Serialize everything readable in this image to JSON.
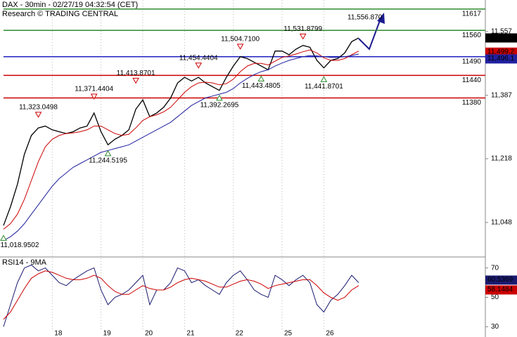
{
  "chart_data": [
    {
      "type": "line",
      "title": "DAX - 30min - 02/27/19 04:32:54 (CET)",
      "subtitle": "Research © TRADING CENTRAL",
      "series": [
        {
          "color": "#000000",
          "values": [
            11040,
            11090,
            11150,
            11230,
            11280,
            11300,
            11305,
            11295,
            11290,
            11285,
            11290,
            11300,
            11305,
            11340,
            11290,
            11255,
            11270,
            11280,
            11295,
            11350,
            11375,
            11330,
            11340,
            11355,
            11380,
            11420,
            11435,
            11425,
            11435,
            11420,
            11410,
            11400,
            11435,
            11465,
            11490,
            11485,
            11475,
            11465,
            11455,
            11505,
            11505,
            11495,
            11510,
            11520,
            11515,
            11480,
            11460,
            11480,
            11485,
            11500,
            11530,
            11540
          ]
        },
        {
          "color": "#cc0000",
          "values": [
            11030,
            11045,
            11070,
            11110,
            11160,
            11210,
            11250,
            11270,
            11280,
            11285,
            11287,
            11290,
            11295,
            11305,
            11305,
            11295,
            11285,
            11280,
            11283,
            11300,
            11320,
            11330,
            11335,
            11343,
            11355,
            11375,
            11395,
            11410,
            11420,
            11422,
            11420,
            11415,
            11418,
            11430,
            11450,
            11465,
            11472,
            11472,
            11468,
            11478,
            11488,
            11492,
            11497,
            11503,
            11508,
            11500,
            11487,
            11480,
            11480,
            11485,
            11495,
            11505
          ]
        },
        {
          "color": "#2020a0",
          "values": [
            11000,
            11010,
            11025,
            11045,
            11070,
            11095,
            11120,
            11145,
            11165,
            11180,
            11195,
            11205,
            11215,
            11225,
            11235,
            11240,
            11245,
            11250,
            11255,
            11265,
            11275,
            11285,
            11295,
            11305,
            11315,
            11330,
            11345,
            11360,
            11370,
            11380,
            11385,
            11390,
            11395,
            11405,
            11420,
            11432,
            11442,
            11450,
            11455,
            11465,
            11473,
            11480,
            11485,
            11490,
            11493,
            11492,
            11490,
            11488,
            11488,
            11490,
            11493,
            11497
          ]
        }
      ],
      "ylim": [
        10958,
        11641
      ],
      "yticks": [
        {
          "value": 11557,
          "label": "11,557"
        },
        {
          "value": 11387,
          "label": "11,387"
        },
        {
          "value": 11218,
          "label": "11,218"
        },
        {
          "value": 11048,
          "label": "11,048"
        }
      ],
      "levels": [
        {
          "value": 11617,
          "color": "#2e8b2e"
        },
        {
          "value": 11560,
          "color": "#2e8b2e"
        },
        {
          "value": 11490,
          "color": "#2020c0"
        },
        {
          "value": 11440,
          "color": "#cc0000"
        },
        {
          "value": 11380,
          "color": "#cc0000"
        }
      ],
      "pivots": [
        {
          "x": 0,
          "kind": "low",
          "value": 11018.9502,
          "label": "11,018.9502"
        },
        {
          "x": 5,
          "kind": "high",
          "value": 11323.0498,
          "label": "11,323.0498"
        },
        {
          "x": 13,
          "kind": "high",
          "value": 11371.4404,
          "label": "11,371.4404"
        },
        {
          "x": 15,
          "kind": "low",
          "value": 11244.5195,
          "label": "11,244.5195"
        },
        {
          "x": 19,
          "kind": "high",
          "value": 11413.8701,
          "label": "11,413.8701"
        },
        {
          "x": 28,
          "kind": "high",
          "value": 11454.4404,
          "label": "11,454.4404"
        },
        {
          "x": 31,
          "kind": "low",
          "value": 11392.2695,
          "label": "11,392.2695"
        },
        {
          "x": 34,
          "kind": "high",
          "value": 11504.71,
          "label": "11,504.7100"
        },
        {
          "x": 37,
          "kind": "low",
          "value": 11443.4805,
          "label": "11,443.4805"
        },
        {
          "x": 43,
          "kind": "high",
          "value": 11531.8799,
          "label": "11,531.8799"
        },
        {
          "x": 46,
          "kind": "low",
          "value": 11441.8701,
          "label": "11,441.8701"
        }
      ],
      "forecast_label": {
        "value": 11556.87,
        "label": "11,556.870"
      },
      "badges": [
        {
          "value": 11540.8,
          "label": "11,540.8",
          "color": "#000000"
        },
        {
          "value": 11499.2,
          "label": "11,499.2",
          "color": "#cc0000"
        },
        {
          "value": 11496.1,
          "label": "11,496.1",
          "color": "#2020a0"
        }
      ]
    },
    {
      "type": "line",
      "title": "RSI14 - 9MA",
      "categories": [
        null,
        null,
        null,
        null,
        null,
        null,
        null,
        "18",
        null,
        null,
        null,
        null,
        null,
        null,
        "19",
        null,
        null,
        null,
        null,
        null,
        "20",
        null,
        null,
        null,
        null,
        null,
        "21",
        null,
        null,
        null,
        null,
        null,
        null,
        "22",
        null,
        null,
        null,
        null,
        null,
        null,
        "25",
        null,
        null,
        null,
        null,
        null,
        "26",
        null,
        null,
        null,
        null,
        null
      ],
      "series": [
        {
          "color": "#1a1a70",
          "values": [
            30,
            45,
            60,
            70,
            72,
            68,
            70,
            65,
            60,
            58,
            62,
            65,
            68,
            70,
            55,
            45,
            50,
            52,
            55,
            60,
            65,
            45,
            55,
            55,
            60,
            70,
            68,
            60,
            62,
            58,
            55,
            52,
            60,
            65,
            68,
            62,
            55,
            52,
            50,
            65,
            62,
            58,
            62,
            65,
            60,
            45,
            40,
            48,
            52,
            58,
            65,
            60
          ]
        },
        {
          "color": "#cc0000",
          "values": [
            35,
            40,
            48,
            56,
            63,
            66,
            68,
            67,
            65,
            63,
            62,
            62,
            63,
            65,
            63,
            58,
            54,
            52,
            52,
            55,
            58,
            56,
            55,
            55,
            57,
            60,
            62,
            63,
            62,
            61,
            59,
            57,
            57,
            59,
            61,
            62,
            61,
            59,
            56,
            58,
            59,
            60,
            61,
            62,
            62,
            58,
            53,
            50,
            48,
            50,
            55,
            58
          ]
        }
      ],
      "ylim": [
        23,
        77
      ],
      "yticks": [
        70,
        50,
        30
      ],
      "badges": [
        {
          "value": 60.5369,
          "color": "#1a1a70"
        },
        {
          "value": 58.1484,
          "color": "#cc0000"
        }
      ]
    }
  ]
}
